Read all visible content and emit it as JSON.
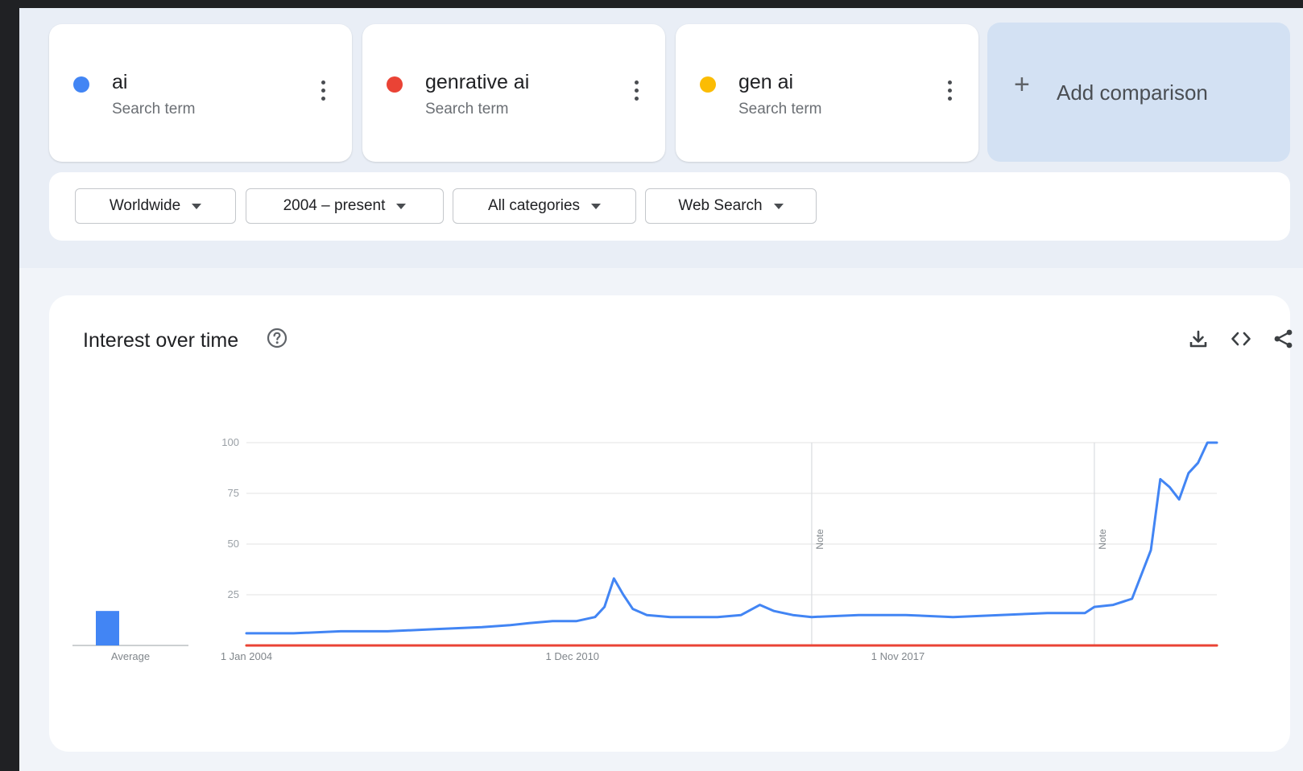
{
  "terms": [
    {
      "name": "ai",
      "subtitle": "Search term",
      "color": "#4285f4"
    },
    {
      "name": "genrative ai",
      "subtitle": "Search term",
      "color": "#ea4335"
    },
    {
      "name": "gen ai",
      "subtitle": "Search term",
      "color": "#fbbc04"
    }
  ],
  "add_comparison": {
    "label": "Add comparison",
    "icon": "plus-icon"
  },
  "filters": {
    "region": "Worldwide",
    "time": "2004 – present",
    "category": "All categories",
    "property": "Web Search"
  },
  "chart": {
    "title": "Interest over time",
    "toolbar_icons": [
      "download-icon",
      "embed-code-icon",
      "share-icon"
    ],
    "help_icon": "help-circle-icon"
  },
  "chart_data": {
    "type": "line",
    "title": "Interest over time",
    "ylim": [
      0,
      100
    ],
    "yticks": [
      "100",
      "75",
      "50",
      "25"
    ],
    "xticks": [
      "1 Jan 2004",
      "1 Dec 2010",
      "1 Nov 2017"
    ],
    "notes": [
      "Note",
      "Note"
    ],
    "average_label": "Average",
    "averages": [
      {
        "series": "ai",
        "value": 17
      }
    ],
    "series": [
      {
        "name": "ai",
        "color": "#4285f4",
        "points": [
          [
            2004.0,
            6
          ],
          [
            2005.0,
            6
          ],
          [
            2006.0,
            7
          ],
          [
            2007.0,
            7
          ],
          [
            2008.0,
            8
          ],
          [
            2009.0,
            9
          ],
          [
            2009.6,
            10
          ],
          [
            2010.0,
            11
          ],
          [
            2010.5,
            12
          ],
          [
            2011.0,
            12
          ],
          [
            2011.4,
            14
          ],
          [
            2011.6,
            19
          ],
          [
            2011.8,
            33
          ],
          [
            2012.0,
            25
          ],
          [
            2012.2,
            18
          ],
          [
            2012.5,
            15
          ],
          [
            2013.0,
            14
          ],
          [
            2013.5,
            14
          ],
          [
            2014.0,
            14
          ],
          [
            2014.5,
            15
          ],
          [
            2014.9,
            20
          ],
          [
            2015.2,
            17
          ],
          [
            2015.6,
            15
          ],
          [
            2016.0,
            14
          ],
          [
            2017.0,
            15
          ],
          [
            2018.0,
            15
          ],
          [
            2019.0,
            14
          ],
          [
            2020.0,
            15
          ],
          [
            2021.0,
            16
          ],
          [
            2021.8,
            16
          ],
          [
            2022.0,
            19
          ],
          [
            2022.4,
            20
          ],
          [
            2022.8,
            23
          ],
          [
            2023.0,
            35
          ],
          [
            2023.2,
            47
          ],
          [
            2023.4,
            82
          ],
          [
            2023.6,
            78
          ],
          [
            2023.8,
            72
          ],
          [
            2024.0,
            85
          ],
          [
            2024.2,
            90
          ],
          [
            2024.4,
            100
          ],
          [
            2024.6,
            100
          ]
        ]
      },
      {
        "name": "genrative ai",
        "color": "#ea4335",
        "points": [
          [
            2004.0,
            0
          ],
          [
            2024.6,
            0
          ]
        ]
      },
      {
        "name": "gen ai",
        "color": "#fbbc04",
        "points": [
          [
            2004.0,
            0
          ],
          [
            2024.6,
            0
          ]
        ]
      }
    ]
  }
}
